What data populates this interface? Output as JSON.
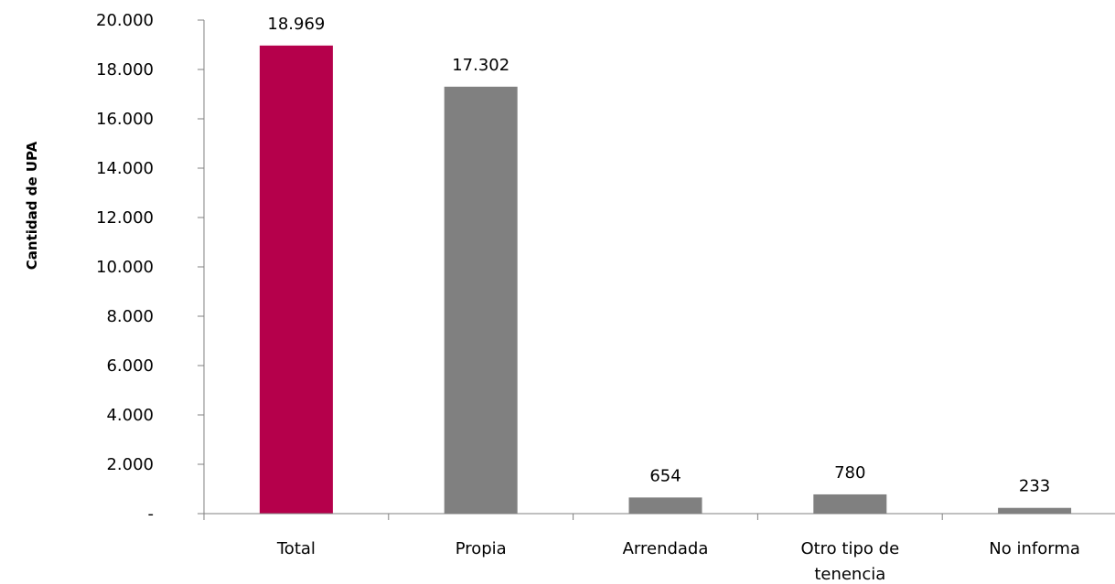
{
  "chart_data": {
    "type": "bar",
    "categories": [
      "Total",
      "Propia",
      "Arrendada",
      "Otro tipo de tenencia",
      "No informa"
    ],
    "category_lines": [
      [
        "Total"
      ],
      [
        "Propia"
      ],
      [
        "Arrendada"
      ],
      [
        "Otro tipo de",
        "tenencia"
      ],
      [
        "No informa"
      ]
    ],
    "values": [
      18969,
      17302,
      654,
      780,
      233
    ],
    "data_labels": [
      "18.969",
      "17.302",
      "654",
      "780",
      "233"
    ],
    "bar_colors": [
      "#B5004B",
      "#808080",
      "#808080",
      "#808080",
      "#808080"
    ],
    "ylabel": "Cantidad de UPA",
    "xlabel": "",
    "ylim": [
      0,
      20000
    ],
    "yticks": [
      0,
      2000,
      4000,
      6000,
      8000,
      10000,
      12000,
      14000,
      16000,
      18000,
      20000
    ],
    "ytick_labels": [
      "-",
      "2.000",
      "4.000",
      "6.000",
      "8.000",
      "10.000",
      "12.000",
      "14.000",
      "16.000",
      "18.000",
      "20.000"
    ],
    "grid": false,
    "legend": "none",
    "axis_color": "#808080"
  }
}
